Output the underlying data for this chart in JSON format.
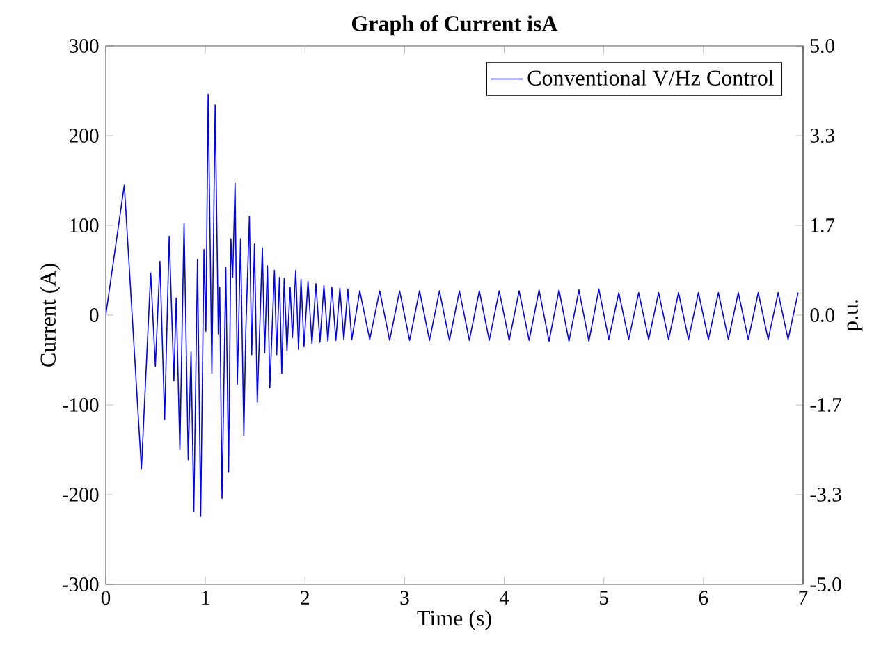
{
  "chart_data": {
    "type": "line",
    "title": "Graph of Current isA",
    "xlabel": "Time (s)",
    "ylabel": "Current (A)",
    "y2label": "p.u.",
    "xlim": [
      0,
      7
    ],
    "xticks": [
      0,
      1,
      2,
      3,
      4,
      5,
      6,
      7
    ],
    "ylim": [
      -300,
      300
    ],
    "yticks": [
      -300,
      -200,
      -100,
      0,
      100,
      200,
      300
    ],
    "y2lim": [
      -5,
      5
    ],
    "y2ticks": [
      {
        "value": -5,
        "label": "-5.0"
      },
      {
        "value": -3.333,
        "label": "-3.3"
      },
      {
        "value": -1.667,
        "label": "-1.7"
      },
      {
        "value": 0,
        "label": "0.0"
      },
      {
        "value": 1.667,
        "label": "1.7"
      },
      {
        "value": 3.333,
        "label": "3.3"
      },
      {
        "value": 5,
        "label": "5.0"
      }
    ],
    "legend": "top right",
    "grid": false,
    "marker": "none",
    "line_style": "solid",
    "series": [
      {
        "name": "Conventional V/Hz Control",
        "color": "#0000ff",
        "x": [
          0,
          0.186,
          0.358,
          0.451,
          0.498,
          0.544,
          0.591,
          0.637,
          0.684,
          0.707,
          0.744,
          0.786,
          0.828,
          0.856,
          0.884,
          0.921,
          0.953,
          0.986,
          1.005,
          1.028,
          1.065,
          1.098,
          1.13,
          1.144,
          1.167,
          1.205,
          1.233,
          1.256,
          1.274,
          1.298,
          1.321,
          1.353,
          1.386,
          1.405,
          1.442,
          1.465,
          1.493,
          1.521,
          1.572,
          1.595,
          1.623,
          1.647,
          1.693,
          1.716,
          1.744,
          1.767,
          1.791,
          1.819,
          1.851,
          1.874,
          1.907,
          1.935,
          1.96,
          1.99,
          2.03,
          2.07,
          2.11,
          2.15,
          2.19,
          2.23,
          2.27,
          2.31,
          2.35,
          2.39,
          2.43,
          2.47,
          2.55,
          2.65,
          2.75,
          2.85,
          2.95,
          3.05,
          3.15,
          3.25,
          3.35,
          3.45,
          3.55,
          3.65,
          3.75,
          3.85,
          3.95,
          4.05,
          4.15,
          4.25,
          4.35,
          4.45,
          4.55,
          4.65,
          4.75,
          4.85,
          4.95,
          5.05,
          5.15,
          5.25,
          5.35,
          5.45,
          5.55,
          5.65,
          5.75,
          5.85,
          5.95,
          6.05,
          6.15,
          6.25,
          6.35,
          6.45,
          6.55,
          6.65,
          6.75,
          6.85,
          6.95
        ],
        "values": [
          0,
          145,
          -171,
          47,
          -57,
          60,
          -116,
          88,
          -73,
          19,
          -150,
          102,
          -161,
          -41,
          -219,
          62,
          -224,
          73,
          -18,
          246,
          -65,
          234,
          -21,
          31,
          -204,
          53,
          -175,
          85,
          42,
          147,
          -77,
          85,
          -134,
          -21,
          110,
          -44,
          79,
          -97,
          75,
          -42,
          55,
          -81,
          50,
          -44,
          42,
          -65,
          41,
          -40,
          31,
          -25,
          50,
          -38,
          40,
          -35,
          38,
          -32,
          35,
          -30,
          33,
          -29,
          31,
          -28,
          30,
          -27,
          29,
          -27,
          27,
          -27,
          27,
          -28,
          27,
          -28,
          27,
          -28,
          27,
          -28,
          27,
          -28,
          27,
          -28,
          27,
          -28,
          27,
          -28,
          28,
          -29,
          28,
          -29,
          28,
          -29,
          29,
          -27,
          25,
          -27,
          25,
          -27,
          25,
          -27,
          25,
          -27,
          25,
          -27,
          25,
          -27,
          25,
          -27,
          25,
          -27,
          25,
          -27,
          25
        ]
      }
    ]
  }
}
